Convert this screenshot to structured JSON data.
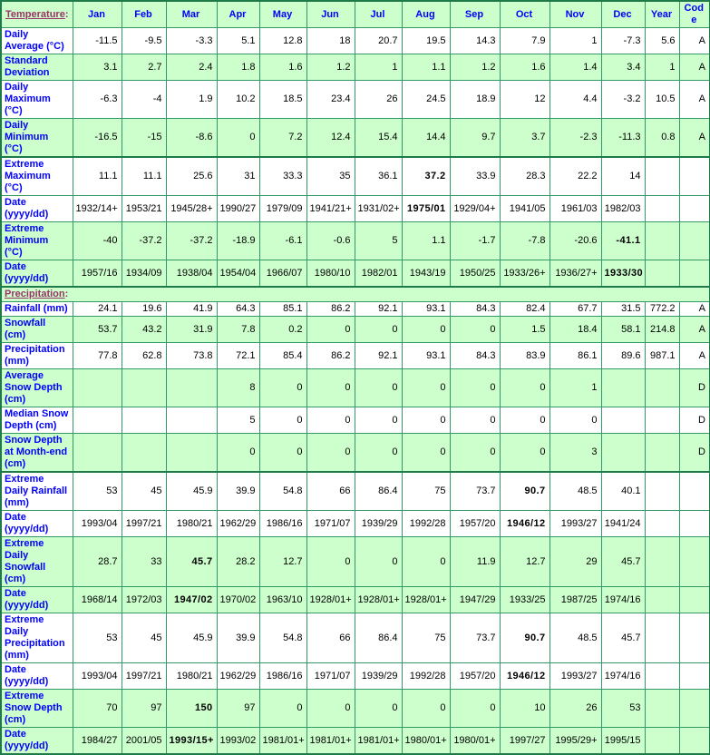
{
  "colors": {
    "cell_green": "#CCFFCC",
    "cell_white": "#FFFFFF",
    "grid_border": "#339966",
    "thick_border": "#1F7A4A",
    "header_text": "#0000FF",
    "section_text": "#993366",
    "data_text": "#000000"
  },
  "header": {
    "temperature_label": "Temperature",
    "colon": ":",
    "months": [
      "Jan",
      "Feb",
      "Mar",
      "Apr",
      "May",
      "Jun",
      "Jul",
      "Aug",
      "Sep",
      "Oct",
      "Nov",
      "Dec"
    ],
    "year_label": "Year",
    "code_label": "Code"
  },
  "rows": [
    {
      "type": "data",
      "label": "Daily Average (°C)",
      "bg": "white",
      "values": [
        "-11.5",
        "-9.5",
        "-3.3",
        "5.1",
        "12.8",
        "18",
        "20.7",
        "19.5",
        "14.3",
        "7.9",
        "1",
        "-7.3",
        "5.6",
        "A"
      ],
      "bold": []
    },
    {
      "type": "data",
      "label": "Standard Deviation",
      "bg": "green",
      "values": [
        "3.1",
        "2.7",
        "2.4",
        "1.8",
        "1.6",
        "1.2",
        "1",
        "1.1",
        "1.2",
        "1.6",
        "1.4",
        "3.4",
        "1",
        "A"
      ],
      "bold": []
    },
    {
      "type": "data",
      "label": "Daily Maximum (°C)",
      "bg": "white",
      "values": [
        "-6.3",
        "-4",
        "1.9",
        "10.2",
        "18.5",
        "23.4",
        "26",
        "24.5",
        "18.9",
        "12",
        "4.4",
        "-3.2",
        "10.5",
        "A"
      ],
      "bold": []
    },
    {
      "type": "data",
      "label": "Daily Minimum (°C)",
      "bg": "green",
      "values": [
        "-16.5",
        "-15",
        "-8.6",
        "0",
        "7.2",
        "12.4",
        "15.4",
        "14.4",
        "9.7",
        "3.7",
        "-2.3",
        "-11.3",
        "0.8",
        "A"
      ],
      "bold": []
    },
    {
      "type": "data",
      "label": "Extreme Maximum (°C)",
      "bg": "white",
      "thick_top": true,
      "values": [
        "11.1",
        "11.1",
        "25.6",
        "31",
        "33.3",
        "35",
        "36.1",
        "37.2",
        "33.9",
        "28.3",
        "22.2",
        "14",
        "",
        ""
      ],
      "bold": [
        7
      ]
    },
    {
      "type": "data",
      "label": "Date (yyyy/dd)",
      "bg": "white",
      "values": [
        "1932/14+",
        "1953/21",
        "1945/28+",
        "1990/27",
        "1979/09",
        "1941/21+",
        "1931/02+",
        "1975/01",
        "1929/04+",
        "1941/05",
        "1961/03",
        "1982/03",
        "",
        ""
      ],
      "bold": [
        7
      ]
    },
    {
      "type": "data",
      "label": "Extreme Minimum (°C)",
      "bg": "green",
      "values": [
        "-40",
        "-37.2",
        "-37.2",
        "-18.9",
        "-6.1",
        "-0.6",
        "5",
        "1.1",
        "-1.7",
        "-7.8",
        "-20.6",
        "-41.1",
        "",
        ""
      ],
      "bold": [
        11
      ]
    },
    {
      "type": "data",
      "label": "Date (yyyy/dd)",
      "bg": "green",
      "values": [
        "1957/16",
        "1934/09",
        "1938/04",
        "1954/04",
        "1966/07",
        "1980/10",
        "1982/01",
        "1943/19",
        "1950/25",
        "1933/26+",
        "1936/27+",
        "1933/30",
        "",
        ""
      ],
      "bold": [
        11
      ]
    },
    {
      "type": "section",
      "label": "Precipitation",
      "colon": ":",
      "bg": "green",
      "thick_top": true
    },
    {
      "type": "data",
      "label": "Rainfall (mm)",
      "bg": "white",
      "values": [
        "24.1",
        "19.6",
        "41.9",
        "64.3",
        "85.1",
        "86.2",
        "92.1",
        "93.1",
        "84.3",
        "82.4",
        "67.7",
        "31.5",
        "772.2",
        "A"
      ],
      "bold": []
    },
    {
      "type": "data",
      "label": "Snowfall (cm)",
      "bg": "green",
      "values": [
        "53.7",
        "43.2",
        "31.9",
        "7.8",
        "0.2",
        "0",
        "0",
        "0",
        "0",
        "1.5",
        "18.4",
        "58.1",
        "214.8",
        "A"
      ],
      "bold": []
    },
    {
      "type": "data",
      "label": "Precipitation (mm)",
      "bg": "white",
      "values": [
        "77.8",
        "62.8",
        "73.8",
        "72.1",
        "85.4",
        "86.2",
        "92.1",
        "93.1",
        "84.3",
        "83.9",
        "86.1",
        "89.6",
        "987.1",
        "A"
      ],
      "bold": []
    },
    {
      "type": "data",
      "label": "Average Snow Depth (cm)",
      "bg": "green",
      "values": [
        "",
        "",
        "",
        "8",
        "0",
        "0",
        "0",
        "0",
        "0",
        "0",
        "1",
        "",
        "",
        "D"
      ],
      "bold": []
    },
    {
      "type": "data",
      "label": "Median Snow Depth (cm)",
      "bg": "white",
      "values": [
        "",
        "",
        "",
        "5",
        "0",
        "0",
        "0",
        "0",
        "0",
        "0",
        "0",
        "",
        "",
        "D"
      ],
      "bold": []
    },
    {
      "type": "data",
      "label": "Snow Depth at Month-end (cm)",
      "bg": "green",
      "values": [
        "",
        "",
        "",
        "0",
        "0",
        "0",
        "0",
        "0",
        "0",
        "0",
        "3",
        "",
        "",
        "D"
      ],
      "bold": []
    },
    {
      "type": "data",
      "label": "Extreme Daily Rainfall (mm)",
      "bg": "white",
      "thick_top": true,
      "values": [
        "53",
        "45",
        "45.9",
        "39.9",
        "54.8",
        "66",
        "86.4",
        "75",
        "73.7",
        "90.7",
        "48.5",
        "40.1",
        "",
        ""
      ],
      "bold": [
        9
      ]
    },
    {
      "type": "data",
      "label": "Date (yyyy/dd)",
      "bg": "white",
      "values": [
        "1993/04",
        "1997/21",
        "1980/21",
        "1962/29",
        "1986/16",
        "1971/07",
        "1939/29",
        "1992/28",
        "1957/20",
        "1946/12",
        "1993/27",
        "1941/24",
        "",
        ""
      ],
      "bold": [
        9
      ]
    },
    {
      "type": "data",
      "label": "Extreme Daily Snowfall (cm)",
      "bg": "green",
      "values": [
        "28.7",
        "33",
        "45.7",
        "28.2",
        "12.7",
        "0",
        "0",
        "0",
        "11.9",
        "12.7",
        "29",
        "45.7",
        "",
        ""
      ],
      "bold": [
        2
      ]
    },
    {
      "type": "data",
      "label": "Date (yyyy/dd)",
      "bg": "green",
      "values": [
        "1968/14",
        "1972/03",
        "1947/02",
        "1970/02",
        "1963/10",
        "1928/01+",
        "1928/01+",
        "1928/01+",
        "1947/29",
        "1933/25",
        "1987/25",
        "1974/16",
        "",
        ""
      ],
      "bold": [
        2
      ]
    },
    {
      "type": "data",
      "label": "Extreme Daily Precipitation (mm)",
      "bg": "white",
      "values": [
        "53",
        "45",
        "45.9",
        "39.9",
        "54.8",
        "66",
        "86.4",
        "75",
        "73.7",
        "90.7",
        "48.5",
        "45.7",
        "",
        ""
      ],
      "bold": [
        9
      ]
    },
    {
      "type": "data",
      "label": "Date (yyyy/dd)",
      "bg": "white",
      "values": [
        "1993/04",
        "1997/21",
        "1980/21",
        "1962/29",
        "1986/16",
        "1971/07",
        "1939/29",
        "1992/28",
        "1957/20",
        "1946/12",
        "1993/27",
        "1974/16",
        "",
        ""
      ],
      "bold": [
        9
      ]
    },
    {
      "type": "data",
      "label": "Extreme Snow Depth (cm)",
      "bg": "green",
      "values": [
        "70",
        "97",
        "150",
        "97",
        "0",
        "0",
        "0",
        "0",
        "0",
        "10",
        "26",
        "53",
        "",
        ""
      ],
      "bold": [
        2
      ]
    },
    {
      "type": "data",
      "label": "Date (yyyy/dd)",
      "bg": "green",
      "values": [
        "1984/27",
        "2001/05",
        "1993/15+",
        "1993/02",
        "1981/01+",
        "1981/01+",
        "1981/01+",
        "1980/01+",
        "1980/01+",
        "1997/27",
        "1995/29+",
        "1995/15",
        "",
        ""
      ],
      "bold": [
        2
      ]
    }
  ]
}
